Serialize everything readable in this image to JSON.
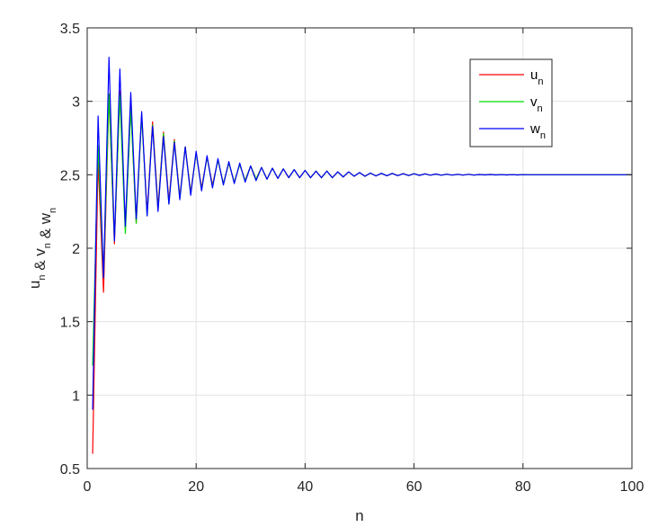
{
  "chart_data": {
    "type": "line",
    "xlabel": "n",
    "ylabel": "u",
    "ylabel_parts": [
      {
        "text": "u",
        "sub": "n"
      },
      {
        "text": " & v",
        "sub": "n"
      },
      {
        "text": " & w",
        "sub": "n"
      }
    ],
    "xlim": [
      0,
      100
    ],
    "ylim": [
      0.5,
      3.5
    ],
    "x_ticks": [
      0,
      20,
      40,
      60,
      80,
      100
    ],
    "y_ticks": [
      0.5,
      1,
      1.5,
      2,
      2.5,
      3,
      3.5
    ],
    "x_tick_labels": [
      "0",
      "20",
      "40",
      "60",
      "80",
      "100"
    ],
    "y_tick_labels": [
      "0.5",
      "1",
      "1.5",
      "2",
      "2.5",
      "3",
      "3.5"
    ],
    "grid": true,
    "legend_position": "top-right",
    "limit": 2.5,
    "series": [
      {
        "name": "u",
        "name_sub": "n",
        "color": "#ff0000",
        "x": [
          1,
          2,
          3,
          4,
          5,
          6,
          7,
          8,
          9,
          10,
          11,
          12,
          13,
          14,
          15,
          16,
          17,
          18,
          19,
          20,
          21,
          22,
          23,
          24,
          25,
          26,
          27,
          28,
          29,
          30,
          31,
          32,
          33,
          34,
          35,
          36,
          37,
          38,
          39,
          40,
          41,
          42,
          43,
          44,
          45,
          46,
          47,
          48,
          49,
          50,
          51,
          52,
          53,
          54,
          55,
          56,
          57,
          58,
          59,
          60,
          61,
          62,
          63,
          64,
          65,
          66,
          67,
          68,
          69,
          70,
          71,
          72,
          73,
          74,
          75,
          76,
          77,
          78,
          79,
          80,
          81,
          82,
          83,
          84,
          85,
          86,
          87,
          88,
          89,
          90,
          91,
          92,
          93,
          94,
          95,
          96,
          97,
          98,
          99,
          100
        ],
        "y": [
          0.6,
          2.6,
          1.7,
          3.05,
          2.03,
          3.07,
          2.13,
          2.97,
          2.17,
          2.91,
          2.24,
          2.86,
          2.28,
          2.79,
          2.32,
          2.74,
          2.35,
          2.69,
          2.38,
          2.65,
          2.41,
          2.62,
          2.43,
          2.6,
          2.44,
          2.58,
          2.45,
          2.57,
          2.46,
          2.56,
          2.47,
          2.55,
          2.47,
          2.545,
          2.475,
          2.54,
          2.48,
          2.535,
          2.48,
          2.53,
          2.48,
          2.525,
          2.48,
          2.525,
          2.48,
          2.52,
          2.485,
          2.52,
          2.49,
          2.515,
          2.49,
          2.512,
          2.492,
          2.51,
          2.493,
          2.509,
          2.494,
          2.508,
          2.495,
          2.507,
          2.496,
          2.506,
          2.497,
          2.505,
          2.497,
          2.504,
          2.498,
          2.503,
          2.498,
          2.503,
          2.498,
          2.502,
          2.499,
          2.502,
          2.499,
          2.501,
          2.499,
          2.501,
          2.499,
          2.501,
          2.5,
          2.5,
          2.5,
          2.5,
          2.5,
          2.5,
          2.5,
          2.5,
          2.5,
          2.5,
          2.5,
          2.5,
          2.5,
          2.5,
          2.5,
          2.5,
          2.5,
          2.5,
          2.5,
          2.5
        ]
      },
      {
        "name": "v",
        "name_sub": "n",
        "color": "#00dd00",
        "x": [
          1,
          2,
          3,
          4,
          5,
          6,
          7,
          8,
          9,
          10,
          11,
          12,
          13,
          14,
          15,
          16,
          17,
          18,
          19,
          20,
          21,
          22,
          23,
          24,
          25,
          26,
          27,
          28,
          29,
          30,
          31,
          32,
          33,
          34,
          35,
          36,
          37,
          38,
          39,
          40,
          41,
          42,
          43,
          44,
          45,
          46,
          47,
          48,
          49,
          50,
          51,
          52,
          53,
          54,
          55,
          56,
          57,
          58,
          59,
          60,
          61,
          62,
          63,
          64,
          65,
          66,
          67,
          68,
          69,
          70,
          71,
          72,
          73,
          74,
          75,
          76,
          77,
          78,
          79,
          80,
          81,
          82,
          83,
          84,
          85,
          86,
          87,
          88,
          89,
          90,
          91,
          92,
          93,
          94,
          95,
          96,
          97,
          98,
          99,
          100
        ],
        "y": [
          1.2,
          2.7,
          1.8,
          3.05,
          2.05,
          3.04,
          2.1,
          2.95,
          2.17,
          2.9,
          2.22,
          2.84,
          2.26,
          2.78,
          2.3,
          2.73,
          2.34,
          2.69,
          2.37,
          2.65,
          2.4,
          2.62,
          2.42,
          2.6,
          2.44,
          2.58,
          2.45,
          2.57,
          2.46,
          2.56,
          2.47,
          2.55,
          2.47,
          2.545,
          2.475,
          2.54,
          2.48,
          2.535,
          2.48,
          2.53,
          2.48,
          2.525,
          2.48,
          2.525,
          2.48,
          2.52,
          2.485,
          2.52,
          2.49,
          2.515,
          2.49,
          2.512,
          2.492,
          2.51,
          2.493,
          2.509,
          2.494,
          2.508,
          2.495,
          2.507,
          2.496,
          2.506,
          2.497,
          2.505,
          2.497,
          2.504,
          2.498,
          2.503,
          2.498,
          2.503,
          2.498,
          2.502,
          2.499,
          2.502,
          2.499,
          2.501,
          2.499,
          2.501,
          2.499,
          2.501,
          2.5,
          2.5,
          2.5,
          2.5,
          2.5,
          2.5,
          2.5,
          2.5,
          2.5,
          2.5,
          2.5,
          2.5,
          2.5,
          2.5,
          2.5,
          2.5,
          2.5,
          2.5,
          2.5,
          2.5
        ]
      },
      {
        "name": "w",
        "name_sub": "n",
        "color": "#0000ff",
        "x": [
          1,
          2,
          3,
          4,
          5,
          6,
          7,
          8,
          9,
          10,
          11,
          12,
          13,
          14,
          15,
          16,
          17,
          18,
          19,
          20,
          21,
          22,
          23,
          24,
          25,
          26,
          27,
          28,
          29,
          30,
          31,
          32,
          33,
          34,
          35,
          36,
          37,
          38,
          39,
          40,
          41,
          42,
          43,
          44,
          45,
          46,
          47,
          48,
          49,
          50,
          51,
          52,
          53,
          54,
          55,
          56,
          57,
          58,
          59,
          60,
          61,
          62,
          63,
          64,
          65,
          66,
          67,
          68,
          69,
          70,
          71,
          72,
          73,
          74,
          75,
          76,
          77,
          78,
          79,
          80,
          81,
          82,
          83,
          84,
          85,
          86,
          87,
          88,
          89,
          90,
          91,
          92,
          93,
          94,
          95,
          96,
          97,
          98,
          99,
          100
        ],
        "y": [
          0.9,
          2.9,
          1.8,
          3.3,
          2.05,
          3.22,
          2.15,
          3.06,
          2.2,
          2.93,
          2.22,
          2.83,
          2.25,
          2.76,
          2.3,
          2.72,
          2.33,
          2.69,
          2.36,
          2.66,
          2.39,
          2.63,
          2.41,
          2.61,
          2.43,
          2.59,
          2.44,
          2.58,
          2.45,
          2.56,
          2.46,
          2.55,
          2.47,
          2.545,
          2.475,
          2.54,
          2.48,
          2.535,
          2.48,
          2.53,
          2.48,
          2.525,
          2.48,
          2.525,
          2.48,
          2.52,
          2.485,
          2.52,
          2.49,
          2.515,
          2.49,
          2.512,
          2.492,
          2.51,
          2.493,
          2.509,
          2.494,
          2.508,
          2.495,
          2.507,
          2.496,
          2.506,
          2.497,
          2.505,
          2.497,
          2.504,
          2.498,
          2.503,
          2.498,
          2.503,
          2.498,
          2.502,
          2.499,
          2.502,
          2.499,
          2.501,
          2.499,
          2.501,
          2.499,
          2.501,
          2.5,
          2.5,
          2.5,
          2.5,
          2.5,
          2.5,
          2.5,
          2.5,
          2.5,
          2.5,
          2.5,
          2.5,
          2.5,
          2.5,
          2.5,
          2.5,
          2.5,
          2.5,
          2.5,
          2.5
        ]
      }
    ]
  }
}
